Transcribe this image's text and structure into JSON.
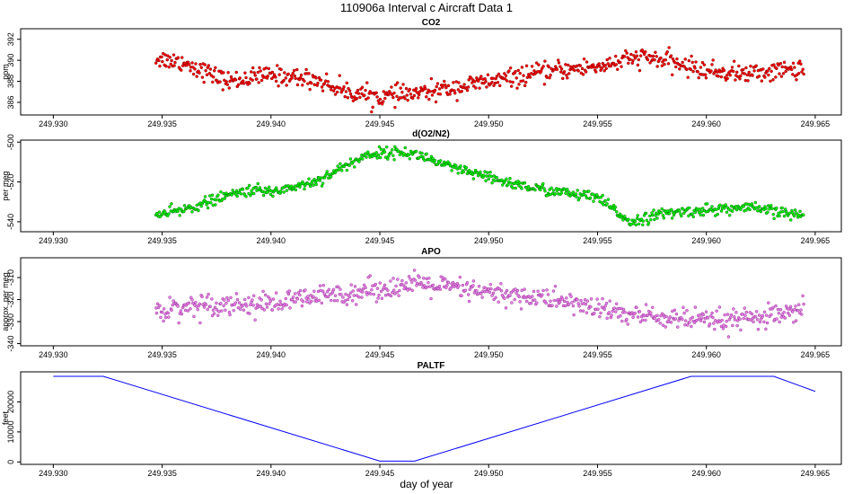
{
  "figure": {
    "title": "110906a   Interval c Aircraft Data 1",
    "xlabel": "day of year"
  },
  "chart_data": [
    {
      "type": "scatter",
      "title": "CO2",
      "ylabel": "ppm",
      "color": "#ff0000",
      "edge_color": "#800000",
      "xlim": [
        249.9285,
        249.9662
      ],
      "ylim": [
        384.8,
        393.0
      ],
      "xticks": [
        "249.930",
        "249.935",
        "249.940",
        "249.945",
        "249.950",
        "249.955",
        "249.960",
        "249.965"
      ],
      "yticks": [
        "386",
        "388",
        "390",
        "392"
      ],
      "x_start": 249.9347,
      "x_end": 249.9645,
      "trend": {
        "x": [
          249.9347,
          249.936,
          249.938,
          249.94,
          249.942,
          249.9435,
          249.945,
          249.947,
          249.949,
          249.951,
          249.953,
          249.955,
          249.957,
          249.958,
          249.96,
          249.962,
          249.9645
        ],
        "y": [
          390.2,
          389.8,
          388.0,
          388.6,
          388.2,
          387.0,
          386.5,
          386.9,
          387.6,
          388.3,
          389.0,
          389.4,
          390.3,
          390.0,
          389.0,
          388.7,
          389.3
        ]
      },
      "noise": 0.8,
      "points": 700
    },
    {
      "type": "scatter",
      "title": "d(O2/N2)",
      "ylabel": "per meg",
      "color": "#00ff00",
      "edge_color": "#006400",
      "xlim": [
        249.9285,
        249.9662
      ],
      "ylim": [
        -545,
        -499
      ],
      "xticks": [
        "249.930",
        "249.935",
        "249.940",
        "249.945",
        "249.950",
        "249.955",
        "249.960",
        "249.965"
      ],
      "yticks": [
        "-540",
        "-520",
        "-500"
      ],
      "x_start": 249.9347,
      "x_end": 249.9645,
      "trend": {
        "x": [
          249.9347,
          249.936,
          249.938,
          249.939,
          249.94,
          249.942,
          249.9445,
          249.946,
          249.947,
          249.948,
          249.95,
          249.952,
          249.955,
          249.9565,
          249.958,
          249.96,
          249.962,
          249.9645
        ],
        "y": [
          -537,
          -534,
          -527,
          -524,
          -525,
          -520,
          -506,
          -505,
          -507,
          -512,
          -518,
          -523,
          -528,
          -540,
          -536,
          -534,
          -533,
          -537
        ]
      },
      "noise": 2.5,
      "points": 700
    },
    {
      "type": "scatter",
      "title": "APO",
      "ylabel": "approx. per meg",
      "color": "#ee82ee",
      "edge_color": "#8b2e8b",
      "xlim": [
        249.9285,
        249.9662
      ],
      "ylim": [
        -341,
        -301
      ],
      "xticks": [
        "249.930",
        "249.935",
        "249.940",
        "249.945",
        "249.950",
        "249.955",
        "249.960",
        "249.965"
      ],
      "yticks": [
        "-340",
        "-330",
        "-320",
        "-310"
      ],
      "x_start": 249.9347,
      "x_end": 249.9645,
      "trend": {
        "x": [
          249.9347,
          249.937,
          249.94,
          249.942,
          249.945,
          249.947,
          249.95,
          249.953,
          249.9565,
          249.958,
          249.96,
          249.962,
          249.9645
        ],
        "y": [
          -325,
          -322,
          -322,
          -319,
          -315,
          -313,
          -317,
          -320,
          -327,
          -328,
          -330,
          -329,
          -326
        ]
      },
      "noise": 4.5,
      "points": 700
    },
    {
      "type": "line",
      "title": "PALTF",
      "ylabel": "feet",
      "color": "#0000ff",
      "xlim": [
        249.9285,
        249.9662
      ],
      "ylim": [
        -800,
        30000
      ],
      "xticks": [
        "249.930",
        "249.935",
        "249.940",
        "249.945",
        "249.950",
        "249.955",
        "249.960",
        "249.965"
      ],
      "yticks": [
        "0",
        "10000",
        "20000"
      ],
      "x": [
        249.93,
        249.9323,
        249.945,
        249.9466,
        249.9593,
        249.9631,
        249.965
      ],
      "y": [
        28500,
        28500,
        300,
        300,
        28500,
        28500,
        23500
      ]
    }
  ]
}
